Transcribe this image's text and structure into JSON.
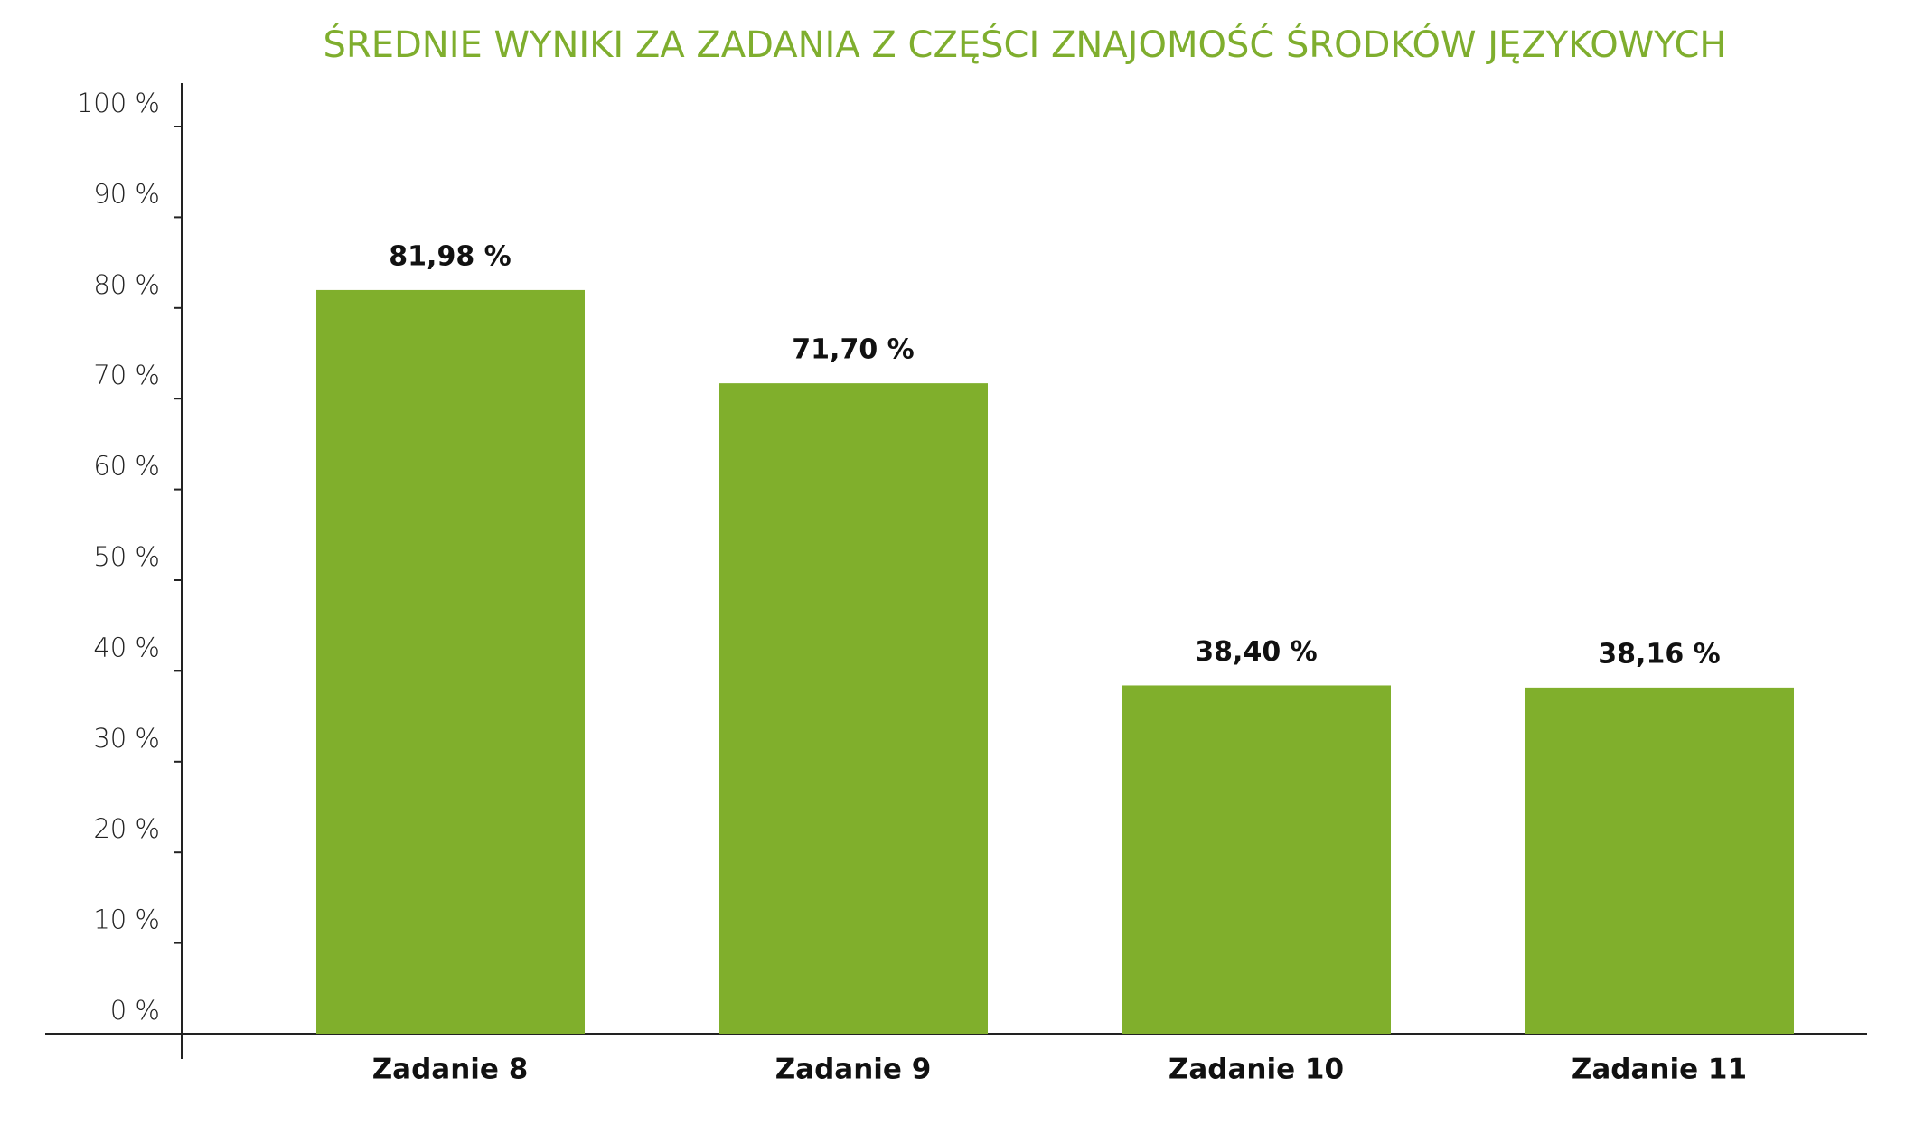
{
  "chart_data": {
    "type": "bar",
    "title": "ŚREDNIE WYNIKI ZA ZADANIA Z CZĘŚCI ZNAJOMOŚĆ ŚRODKÓW JĘZYKOWYCH",
    "categories": [
      "Zadanie 8",
      "Zadanie 9",
      "Zadanie 10",
      "Zadanie 11"
    ],
    "values": [
      81.98,
      71.7,
      38.4,
      38.16
    ],
    "value_labels": [
      "81,98 %",
      "71,70 %",
      "38,40 %",
      "38,16 %"
    ],
    "color": "#80af2c",
    "ylim": [
      0,
      100
    ],
    "yticks": [
      {
        "value": 0,
        "label": "0 %"
      },
      {
        "value": 10,
        "label": "10 %"
      },
      {
        "value": 20,
        "label": "20 %"
      },
      {
        "value": 30,
        "label": "30 %"
      },
      {
        "value": 40,
        "label": "40 %"
      },
      {
        "value": 50,
        "label": "50 %"
      },
      {
        "value": 60,
        "label": "60 %"
      },
      {
        "value": 70,
        "label": "70 %"
      },
      {
        "value": 80,
        "label": "80 %"
      },
      {
        "value": 90,
        "label": "90 %"
      },
      {
        "value": 100,
        "label": "100 %"
      }
    ],
    "grid": false
  }
}
